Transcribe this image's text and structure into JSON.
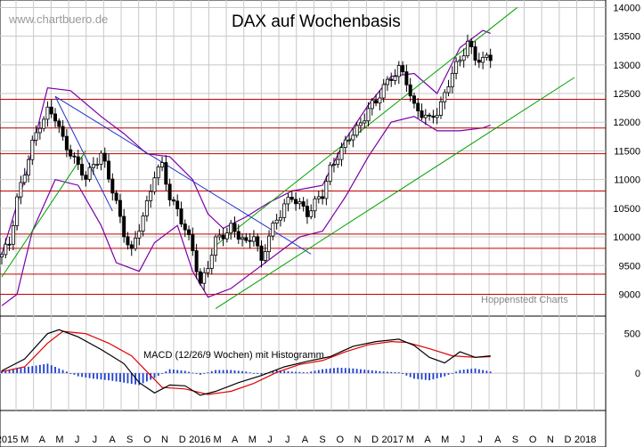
{
  "watermark": "www.chartbuero.de",
  "footer_source": "Hoppenstedt Charts",
  "colors": {
    "grid": "#c8c8c8",
    "candle": "#000000",
    "bollinger": "#7a00aa",
    "resistance": "#c00000",
    "trend_down": "#1a2fc8",
    "channel": "#00a000",
    "macd_line": "#000000",
    "signal_line": "#e00000",
    "histogram": "#1f3fd0"
  },
  "chart_data": [
    {
      "type": "candlestick",
      "title": "DAX auf Wochenbasis",
      "y_ticks": [
        9000,
        9500,
        10000,
        10500,
        11000,
        11500,
        12000,
        12500,
        13000,
        13500,
        14000
      ],
      "ylim": [
        8650,
        14100
      ],
      "x_ticks": [
        "2015",
        "M",
        "A",
        "M",
        "J",
        "J",
        "A",
        "S",
        "O",
        "N",
        "D",
        "2016",
        "M",
        "A",
        "M",
        "J",
        "J",
        "A",
        "S",
        "O",
        "N",
        "D",
        "2017",
        "M",
        "A",
        "M",
        "J",
        "J",
        "A",
        "S",
        "O",
        "N",
        "D",
        "2018"
      ],
      "grid": true,
      "series_close": [
        [
          0,
          9650
        ],
        [
          2,
          9900
        ],
        [
          4,
          10700
        ],
        [
          6,
          11100
        ],
        [
          8,
          11600
        ],
        [
          10,
          12000
        ],
        [
          12,
          12200
        ],
        [
          14,
          12050
        ],
        [
          16,
          11700
        ],
        [
          18,
          11500
        ],
        [
          20,
          11200
        ],
        [
          22,
          11000
        ],
        [
          24,
          11300
        ],
        [
          26,
          11450
        ],
        [
          28,
          11000
        ],
        [
          30,
          10600
        ],
        [
          32,
          10100
        ],
        [
          34,
          9700
        ],
        [
          36,
          10150
        ],
        [
          38,
          10600
        ],
        [
          40,
          11100
        ],
        [
          42,
          11200
        ],
        [
          44,
          10700
        ],
        [
          46,
          10500
        ],
        [
          48,
          10100
        ],
        [
          50,
          9750
        ],
        [
          52,
          9200
        ],
        [
          54,
          9500
        ],
        [
          56,
          9900
        ],
        [
          58,
          10050
        ],
        [
          60,
          10200
        ],
        [
          62,
          10000
        ],
        [
          64,
          9850
        ],
        [
          66,
          10100
        ],
        [
          68,
          9550
        ],
        [
          70,
          10000
        ],
        [
          72,
          10300
        ],
        [
          74,
          10600
        ],
        [
          76,
          10650
        ],
        [
          78,
          10550
        ],
        [
          80,
          10450
        ],
        [
          82,
          10600
        ],
        [
          84,
          10700
        ],
        [
          86,
          11200
        ],
        [
          88,
          11450
        ],
        [
          90,
          11600
        ],
        [
          92,
          11800
        ],
        [
          94,
          12000
        ],
        [
          96,
          12250
        ],
        [
          98,
          12300
        ],
        [
          100,
          12650
        ],
        [
          102,
          12800
        ],
        [
          104,
          12900
        ],
        [
          106,
          12700
        ],
        [
          108,
          12300
        ],
        [
          110,
          12150
        ],
        [
          112,
          12000
        ],
        [
          114,
          12200
        ],
        [
          116,
          12500
        ],
        [
          118,
          12850
        ],
        [
          120,
          13050
        ],
        [
          122,
          13450
        ],
        [
          124,
          13100
        ],
        [
          126,
          13050
        ],
        [
          128,
          13150
        ]
      ],
      "resistance_levels": [
        12400,
        11900,
        11450,
        10800,
        10050,
        9800,
        9350,
        9000
      ],
      "trendlines": [
        {
          "kind": "down",
          "from": [
            14,
            12450
          ],
          "to": [
            81,
            9700
          ]
        },
        {
          "kind": "down",
          "from": [
            14,
            12450
          ],
          "to": [
            29,
            10450
          ]
        },
        {
          "kind": "channel-lower",
          "from": [
            56,
            8750
          ],
          "to": [
            150,
            12780
          ]
        },
        {
          "kind": "channel-upper",
          "from": [
            56,
            9850
          ],
          "to": [
            135,
            14000
          ]
        },
        {
          "kind": "up",
          "from": [
            0,
            9300
          ],
          "to": [
            22,
            11500
          ]
        }
      ],
      "bollinger": {
        "upper": [
          [
            0,
            9700
          ],
          [
            6,
            11000
          ],
          [
            12,
            12600
          ],
          [
            18,
            12550
          ],
          [
            26,
            12100
          ],
          [
            32,
            11800
          ],
          [
            38,
            11450
          ],
          [
            44,
            11400
          ],
          [
            50,
            11000
          ],
          [
            54,
            10400
          ],
          [
            58,
            10150
          ],
          [
            64,
            10350
          ],
          [
            70,
            10600
          ],
          [
            76,
            10800
          ],
          [
            84,
            10900
          ],
          [
            90,
            11700
          ],
          [
            96,
            12300
          ],
          [
            102,
            12800
          ],
          [
            108,
            12850
          ],
          [
            114,
            12500
          ],
          [
            120,
            13300
          ],
          [
            126,
            13600
          ],
          [
            128,
            13550
          ]
        ],
        "lower": [
          [
            0,
            8800
          ],
          [
            4,
            9000
          ],
          [
            8,
            10100
          ],
          [
            14,
            11000
          ],
          [
            20,
            10900
          ],
          [
            26,
            10200
          ],
          [
            30,
            9550
          ],
          [
            36,
            9400
          ],
          [
            40,
            9900
          ],
          [
            46,
            10200
          ],
          [
            50,
            9400
          ],
          [
            54,
            8950
          ],
          [
            60,
            9100
          ],
          [
            66,
            9400
          ],
          [
            72,
            9700
          ],
          [
            78,
            10000
          ],
          [
            84,
            10100
          ],
          [
            90,
            10700
          ],
          [
            96,
            11400
          ],
          [
            102,
            12000
          ],
          [
            108,
            12100
          ],
          [
            114,
            11850
          ],
          [
            120,
            11850
          ],
          [
            126,
            11900
          ],
          [
            128,
            11950
          ]
        ]
      }
    },
    {
      "type": "line",
      "title": "MACD (12/26/9 Wochen) mit Histogramm",
      "y_ticks": [
        0,
        500
      ],
      "ylim": [
        -450,
        700
      ],
      "series": [
        {
          "values": [
            [
              0,
              30
            ],
            [
              6,
              180
            ],
            [
              12,
              500
            ],
            [
              15,
              550
            ],
            [
              20,
              460
            ],
            [
              26,
              300
            ],
            [
              32,
              120
            ],
            [
              36,
              -120
            ],
            [
              40,
              -250
            ],
            [
              44,
              -150
            ],
            [
              48,
              -160
            ],
            [
              52,
              -280
            ],
            [
              56,
              -230
            ],
            [
              62,
              -120
            ],
            [
              68,
              -30
            ],
            [
              74,
              80
            ],
            [
              80,
              150
            ],
            [
              86,
              210
            ],
            [
              92,
              340
            ],
            [
              98,
              400
            ],
            [
              104,
              430
            ],
            [
              108,
              350
            ],
            [
              112,
              200
            ],
            [
              116,
              130
            ],
            [
              120,
              270
            ],
            [
              124,
              200
            ],
            [
              128,
              220
            ]
          ]
        },
        {
          "values": [
            [
              0,
              20
            ],
            [
              6,
              80
            ],
            [
              12,
              380
            ],
            [
              16,
              530
            ],
            [
              22,
              500
            ],
            [
              28,
              380
            ],
            [
              34,
              220
            ],
            [
              38,
              20
            ],
            [
              42,
              -180
            ],
            [
              48,
              -200
            ],
            [
              54,
              -270
            ],
            [
              60,
              -230
            ],
            [
              66,
              -130
            ],
            [
              72,
              10
            ],
            [
              78,
              110
            ],
            [
              84,
              160
            ],
            [
              90,
              270
            ],
            [
              96,
              360
            ],
            [
              102,
              400
            ],
            [
              106,
              390
            ],
            [
              112,
              310
            ],
            [
              118,
              220
            ],
            [
              124,
              200
            ],
            [
              128,
              210
            ]
          ]
        }
      ],
      "histogram": [
        [
          0,
          30
        ],
        [
          4,
          60
        ],
        [
          8,
          90
        ],
        [
          12,
          120
        ],
        [
          16,
          40
        ],
        [
          20,
          -40
        ],
        [
          24,
          -70
        ],
        [
          28,
          -90
        ],
        [
          32,
          -120
        ],
        [
          36,
          -150
        ],
        [
          40,
          -60
        ],
        [
          44,
          50
        ],
        [
          48,
          30
        ],
        [
          52,
          -20
        ],
        [
          56,
          40
        ],
        [
          60,
          40
        ],
        [
          64,
          20
        ],
        [
          68,
          -20
        ],
        [
          72,
          40
        ],
        [
          76,
          20
        ],
        [
          80,
          10
        ],
        [
          84,
          50
        ],
        [
          88,
          70
        ],
        [
          92,
          60
        ],
        [
          96,
          40
        ],
        [
          100,
          20
        ],
        [
          104,
          10
        ],
        [
          108,
          -70
        ],
        [
          112,
          -90
        ],
        [
          116,
          -40
        ],
        [
          120,
          40
        ],
        [
          124,
          60
        ],
        [
          128,
          20
        ]
      ]
    }
  ]
}
